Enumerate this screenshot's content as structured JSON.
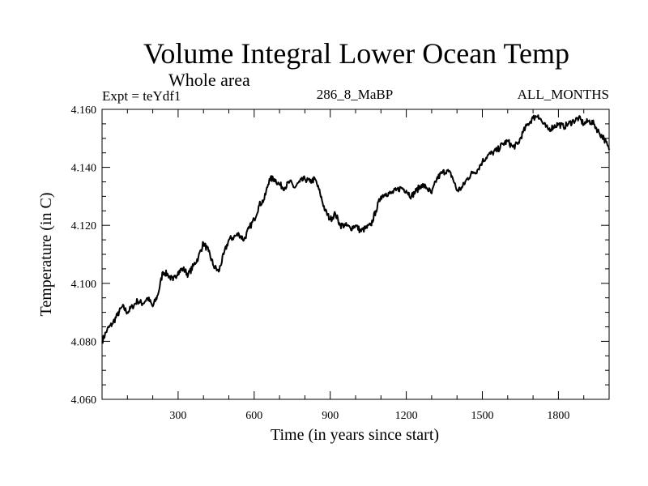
{
  "chart_data": {
    "type": "line",
    "title": "Volume Integral Lower Ocean Temp",
    "subtitle": "Whole area",
    "left_label": "Expt = teYdf1",
    "center_label": "286_8_MaBP",
    "right_label": "ALL_MONTHS",
    "xlabel": "Time (in years since start)",
    "ylabel": "Temperature (in C)",
    "xlim": [
      0,
      2000
    ],
    "ylim": [
      4.06,
      4.16
    ],
    "xticks": [
      300,
      600,
      900,
      1200,
      1500,
      1800
    ],
    "xtick_labels": [
      "300",
      "600",
      "900",
      "1200",
      "1500",
      "1800"
    ],
    "yticks": [
      4.06,
      4.08,
      4.1,
      4.12,
      4.14,
      4.16
    ],
    "ytick_labels": [
      "4.060",
      "4.080",
      "4.100",
      "4.120",
      "4.140",
      "4.160"
    ],
    "grid": false,
    "line_color": "#000000",
    "series": [
      {
        "name": "Volume Integral Lower Ocean Temp",
        "x": [
          0,
          20,
          40,
          60,
          80,
          100,
          120,
          140,
          160,
          180,
          200,
          220,
          240,
          260,
          280,
          300,
          320,
          340,
          360,
          380,
          400,
          420,
          440,
          460,
          480,
          500,
          520,
          540,
          560,
          580,
          600,
          620,
          640,
          660,
          680,
          700,
          720,
          740,
          760,
          780,
          800,
          820,
          840,
          860,
          880,
          900,
          920,
          940,
          960,
          980,
          1000,
          1020,
          1040,
          1060,
          1080,
          1100,
          1120,
          1140,
          1160,
          1180,
          1200,
          1220,
          1240,
          1260,
          1280,
          1300,
          1320,
          1340,
          1360,
          1380,
          1400,
          1420,
          1440,
          1460,
          1480,
          1500,
          1520,
          1540,
          1560,
          1580,
          1600,
          1620,
          1640,
          1660,
          1680,
          1700,
          1720,
          1740,
          1760,
          1780,
          1800,
          1820,
          1840,
          1860,
          1880,
          1900,
          1920,
          1940,
          1960,
          1980,
          2000
        ],
        "y": [
          4.08,
          4.084,
          4.086,
          4.089,
          4.092,
          4.09,
          4.092,
          4.094,
          4.093,
          4.095,
          4.092,
          4.096,
          4.104,
          4.103,
          4.101,
          4.104,
          4.105,
          4.103,
          4.106,
          4.109,
          4.114,
          4.111,
          4.106,
          4.104,
          4.11,
          4.115,
          4.116,
          4.117,
          4.115,
          4.119,
          4.122,
          4.127,
          4.129,
          4.136,
          4.136,
          4.134,
          4.133,
          4.135,
          4.133,
          4.135,
          4.136,
          4.135,
          4.136,
          4.131,
          4.125,
          4.122,
          4.124,
          4.12,
          4.12,
          4.119,
          4.12,
          4.118,
          4.119,
          4.12,
          4.125,
          4.13,
          4.131,
          4.131,
          4.132,
          4.133,
          4.132,
          4.13,
          4.132,
          4.134,
          4.133,
          4.131,
          4.136,
          4.138,
          4.139,
          4.137,
          4.132,
          4.133,
          4.136,
          4.138,
          4.139,
          4.142,
          4.144,
          4.145,
          4.146,
          4.148,
          4.149,
          4.147,
          4.148,
          4.152,
          4.155,
          4.157,
          4.158,
          4.155,
          4.153,
          4.154,
          4.155,
          4.154,
          4.155,
          4.156,
          4.157,
          4.155,
          4.156,
          4.155,
          4.152,
          4.15,
          4.146
        ]
      }
    ]
  }
}
